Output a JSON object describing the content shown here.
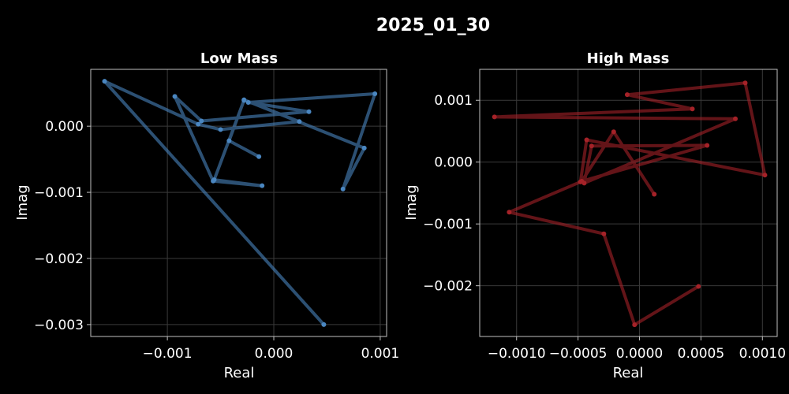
{
  "figure": {
    "title": "2025_01_30"
  },
  "chart_data": [
    {
      "type": "line",
      "title": "Low Mass",
      "xlabel": "Real",
      "ylabel": "Imag",
      "color": "#4a86c0",
      "xlim": [
        -0.00172,
        0.00106
      ],
      "ylim": [
        -0.00318,
        0.00086
      ],
      "xticks": [
        -0.001,
        0.0,
        0.001
      ],
      "xtick_labels": [
        "−0.001",
        "0.000",
        "0.001"
      ],
      "yticks": [
        -0.003,
        -0.002,
        -0.001,
        0.0
      ],
      "ytick_labels": [
        "−0.003",
        "−0.002",
        "−0.001",
        "0.000"
      ],
      "grid": true,
      "x": [
        0.00047,
        -0.00159,
        -0.00071,
        -0.0005,
        0.00024,
        -0.00028,
        0.00085,
        0.00065,
        0.00095,
        -0.00024,
        0.00033,
        -0.00068,
        -0.00093,
        -0.00057,
        -0.00011,
        -0.00056,
        -0.00028,
        -0.00042,
        -0.00014
      ],
      "y": [
        -0.003,
        0.00068,
        3e-05,
        -5e-05,
        7e-05,
        0.0004,
        -0.00033,
        -0.00095,
        0.00049,
        0.00036,
        0.00022,
        8e-05,
        0.00045,
        -0.00083,
        -0.0009,
        -0.00081,
        0.00039,
        -0.00022,
        -0.00046
      ]
    },
    {
      "type": "line",
      "title": "High Mass",
      "xlabel": "Real",
      "ylabel": "Imag",
      "color": "#a52228",
      "xlim": [
        -0.0013,
        0.00112
      ],
      "ylim": [
        -0.00282,
        0.0015
      ],
      "xticks": [
        -0.001,
        -0.0005,
        0.0,
        0.0005,
        0.001
      ],
      "xtick_labels": [
        "−0.0010",
        "−0.0005",
        "0.0000",
        "0.0005",
        "0.0010"
      ],
      "yticks": [
        -0.002,
        -0.001,
        0.0,
        0.001
      ],
      "ytick_labels": [
        "−0.002",
        "−0.001",
        "0.000",
        "0.001"
      ],
      "grid": true,
      "x": [
        0.00048,
        -4e-05,
        -0.00029,
        -0.00106,
        -0.00048,
        -0.00043,
        0.00102,
        0.00086,
        -0.0001,
        0.00043,
        -0.00118,
        0.00078,
        -0.00045,
        -0.00039,
        0.00055,
        -0.00047,
        -0.00021,
        0.00012
      ],
      "y": [
        -0.00201,
        -0.00263,
        -0.00116,
        -0.00081,
        -0.00032,
        0.00036,
        -0.00021,
        0.00128,
        0.00109,
        0.00086,
        0.00073,
        0.0007,
        -0.00034,
        0.00026,
        0.00027,
        -0.00031,
        0.00049,
        -0.00052
      ]
    }
  ]
}
